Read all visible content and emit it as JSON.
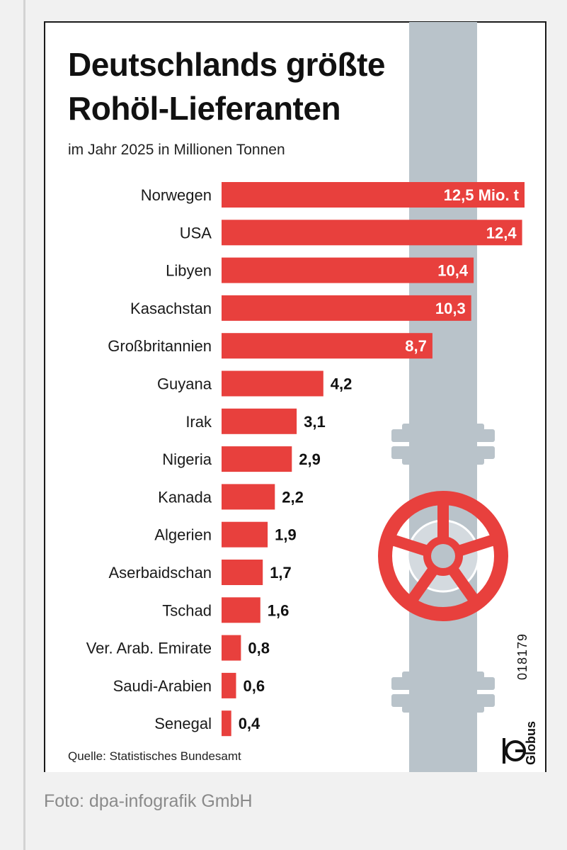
{
  "infographic": {
    "title_line1": "Deutschlands größte",
    "title_line2": "Rohöl-Lieferanten",
    "subtitle": "im Jahr 2025 in Millionen Tonnen",
    "source": "Quelle: Statistisches Bundesamt",
    "brand": "Globus",
    "graphic_number": "018179"
  },
  "caption": "Foto: dpa-infografik GmbH",
  "colors": {
    "bar": "#e8403d",
    "pipe": "#b9c3ca",
    "valve": "#e8403d"
  },
  "chart_data": {
    "type": "bar",
    "orientation": "horizontal",
    "title": "Deutschlands größte Rohöl-Lieferanten",
    "subtitle": "im Jahr 2025 in Millionen Tonnen",
    "categories": [
      "Norwegen",
      "USA",
      "Libyen",
      "Kasachstan",
      "Großbritannien",
      "Guyana",
      "Irak",
      "Nigeria",
      "Kanada",
      "Algerien",
      "Aserbaidschan",
      "Tschad",
      "Ver. Arab. Emirate",
      "Saudi-Arabien",
      "Senegal"
    ],
    "values": [
      12.5,
      12.4,
      10.4,
      10.3,
      8.7,
      4.2,
      3.1,
      2.9,
      2.2,
      1.9,
      1.7,
      1.6,
      0.8,
      0.6,
      0.4
    ],
    "value_labels": [
      "12,5 Mio. t",
      "12,4",
      "10,4",
      "10,3",
      "8,7",
      "4,2",
      "3,1",
      "2,9",
      "2,2",
      "1,9",
      "1,7",
      "1,6",
      "0,8",
      "0,6",
      "0,4"
    ],
    "xlim": [
      0,
      12.5
    ],
    "grid": false,
    "legend": "none"
  }
}
